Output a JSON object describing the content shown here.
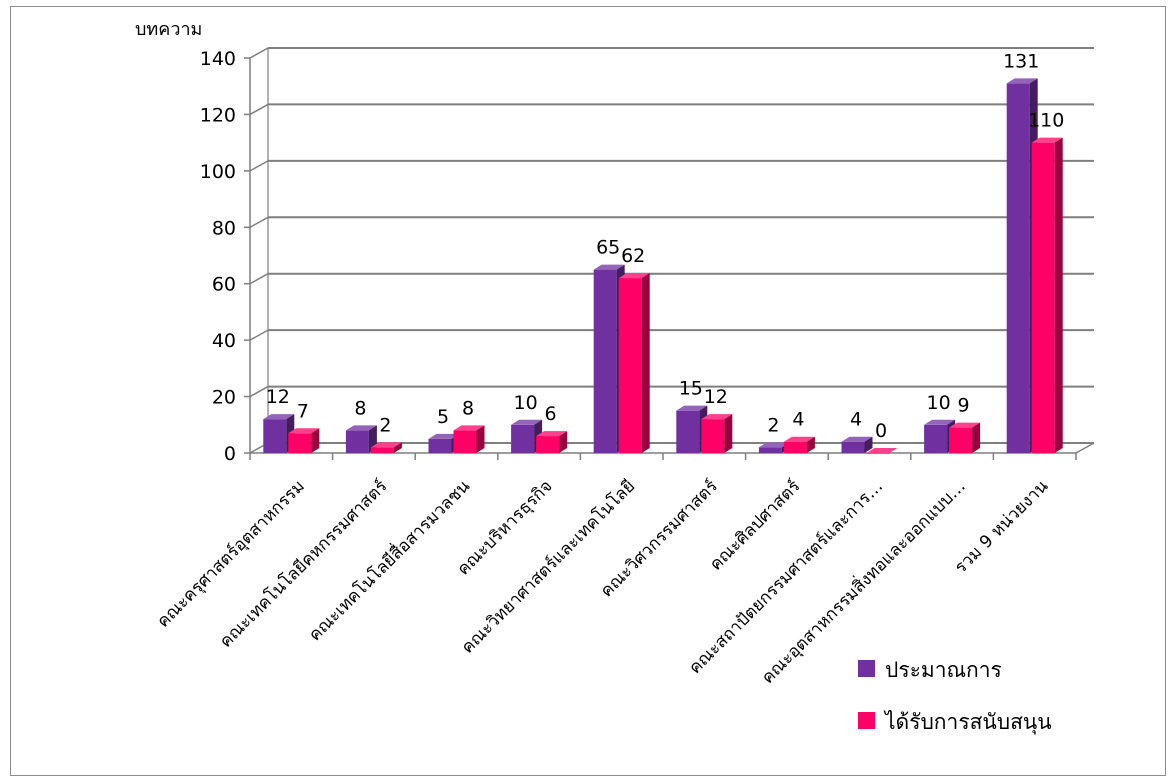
{
  "chart_data": {
    "type": "bar",
    "ylabel": "บทความ",
    "ylim": [
      0,
      140
    ],
    "yticks": [
      0,
      20,
      40,
      60,
      80,
      100,
      120,
      140
    ],
    "grid": true,
    "legend_position": "bottom-right",
    "categories": [
      "คณะครุศาสตร์อุตสาหกรรม",
      "คณะเทคโนโลยีคหกรรมศาสตร์",
      "คณะเทคโนโลยีสื่อสารมวลชน",
      "คณะบริหารธุรกิจ",
      "คณะวิทยาศาสตร์และเทคโนโลยี",
      "คณะวิศวกรรมศาสตร์",
      "คณะศิลปศาสตร์",
      "คณะสถาปัตยกรรมศาสตร์และการ…",
      "คณะอุตสาหกรรมสิ่งทอและออกแบบ…",
      "รวม 9 หน่วยงาน"
    ],
    "series": [
      {
        "name": "ประมาณการ",
        "color": "#7030a0",
        "values": [
          12,
          8,
          5,
          10,
          65,
          15,
          2,
          4,
          10,
          131
        ]
      },
      {
        "name": "ได้รับการสนับสนุน",
        "color": "#ff0066",
        "values": [
          7,
          2,
          8,
          6,
          62,
          12,
          4,
          0,
          9,
          110
        ]
      }
    ]
  }
}
